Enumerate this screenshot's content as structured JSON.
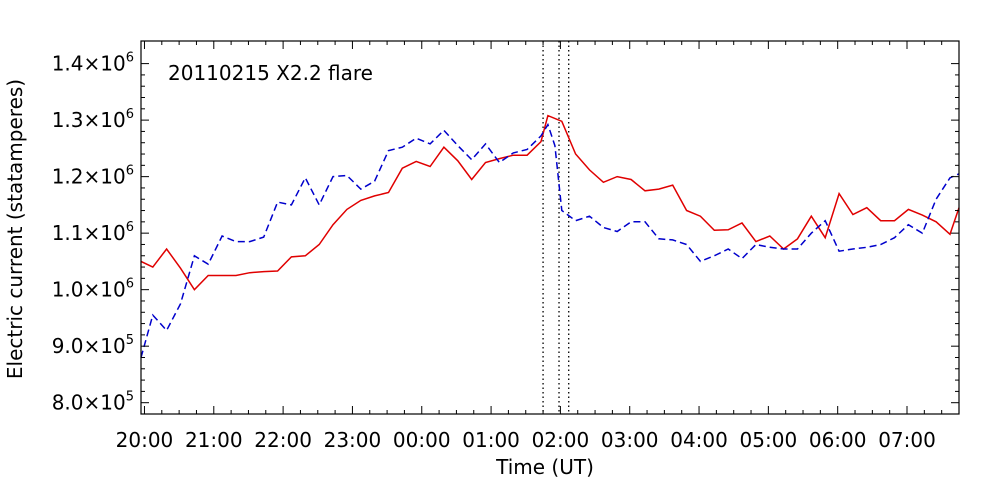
{
  "chart_data": {
    "type": "line",
    "annotation": "20110215 X2.2 flare",
    "xlabel": "Time (UT)",
    "ylabel": "Electric current (statamperes)",
    "ylim": [
      780000,
      1440000
    ],
    "xlim": [
      -0.05,
      11.75
    ],
    "grid": false,
    "x_tick_labels": [
      "20:00",
      "21:00",
      "22:00",
      "23:00",
      "00:00",
      "01:00",
      "02:00",
      "03:00",
      "04:00",
      "05:00",
      "06:00",
      "07:00"
    ],
    "y_ticks": [
      {
        "value": 800000,
        "mantissa": "8.0×10",
        "exp": "5"
      },
      {
        "value": 900000,
        "mantissa": "9.0×10",
        "exp": "5"
      },
      {
        "value": 1000000,
        "mantissa": "1.0×10",
        "exp": "6"
      },
      {
        "value": 1100000,
        "mantissa": "1.1×10",
        "exp": "6"
      },
      {
        "value": 1200000,
        "mantissa": "1.2×10",
        "exp": "6"
      },
      {
        "value": 1300000,
        "mantissa": "1.3×10",
        "exp": "6"
      },
      {
        "value": 1400000,
        "mantissa": "1.4×10",
        "exp": "6"
      }
    ],
    "vertical_lines_x": [
      5.75,
      5.98,
      6.12
    ],
    "series": [
      {
        "color": "#e00000",
        "dash": "solid",
        "x": [
          -0.05,
          0.12,
          0.32,
          0.52,
          0.72,
          0.92,
          1.12,
          1.32,
          1.52,
          1.72,
          1.92,
          2.12,
          2.32,
          2.52,
          2.72,
          2.92,
          3.12,
          3.32,
          3.52,
          3.72,
          3.92,
          4.12,
          4.32,
          4.52,
          4.72,
          4.92,
          5.12,
          5.32,
          5.52,
          5.72,
          5.82,
          6.02,
          6.22,
          6.42,
          6.62,
          6.82,
          7.02,
          7.22,
          7.42,
          7.62,
          7.82,
          8.02,
          8.22,
          8.42,
          8.62,
          8.82,
          9.02,
          9.22,
          9.42,
          9.62,
          9.82,
          10.02,
          10.22,
          10.42,
          10.62,
          10.82,
          11.02,
          11.22,
          11.42,
          11.62,
          11.75
        ],
        "y": [
          1050000,
          1040000,
          1072000,
          1038000,
          1000000,
          1025000,
          1025000,
          1025000,
          1030000,
          1032000,
          1033000,
          1058000,
          1060000,
          1080000,
          1115000,
          1142000,
          1158000,
          1166000,
          1172000,
          1215000,
          1227000,
          1218000,
          1252000,
          1228000,
          1195000,
          1225000,
          1232000,
          1238000,
          1238000,
          1262000,
          1308000,
          1298000,
          1240000,
          1212000,
          1190000,
          1200000,
          1195000,
          1175000,
          1178000,
          1185000,
          1140000,
          1130000,
          1105000,
          1106000,
          1118000,
          1085000,
          1095000,
          1072000,
          1090000,
          1130000,
          1092000,
          1170000,
          1133000,
          1145000,
          1122000,
          1122000,
          1142000,
          1132000,
          1120000,
          1098000,
          1145000
        ]
      },
      {
        "color": "#0000cc",
        "dash": "dashed",
        "x": [
          -0.05,
          0.12,
          0.32,
          0.52,
          0.72,
          0.92,
          1.12,
          1.32,
          1.52,
          1.72,
          1.92,
          2.12,
          2.32,
          2.52,
          2.72,
          2.92,
          3.12,
          3.32,
          3.52,
          3.72,
          3.92,
          4.12,
          4.32,
          4.52,
          4.72,
          4.92,
          5.12,
          5.32,
          5.52,
          5.72,
          5.82,
          5.92,
          6.02,
          6.22,
          6.42,
          6.62,
          6.82,
          7.02,
          7.22,
          7.42,
          7.62,
          7.82,
          8.02,
          8.22,
          8.42,
          8.62,
          8.82,
          9.02,
          9.22,
          9.42,
          9.62,
          9.82,
          10.02,
          10.22,
          10.42,
          10.62,
          10.82,
          11.02,
          11.22,
          11.42,
          11.62,
          11.75
        ],
        "y": [
          880000,
          955000,
          928000,
          975000,
          1060000,
          1045000,
          1095000,
          1085000,
          1085000,
          1093000,
          1155000,
          1150000,
          1198000,
          1150000,
          1200000,
          1202000,
          1178000,
          1192000,
          1246000,
          1252000,
          1268000,
          1258000,
          1282000,
          1255000,
          1230000,
          1258000,
          1225000,
          1242000,
          1248000,
          1272000,
          1292000,
          1255000,
          1140000,
          1122000,
          1130000,
          1110000,
          1103000,
          1120000,
          1120000,
          1090000,
          1088000,
          1080000,
          1050000,
          1060000,
          1072000,
          1055000,
          1080000,
          1075000,
          1072000,
          1072000,
          1100000,
          1122000,
          1068000,
          1072000,
          1075000,
          1080000,
          1092000,
          1115000,
          1100000,
          1160000,
          1198000,
          1205000
        ]
      }
    ]
  }
}
